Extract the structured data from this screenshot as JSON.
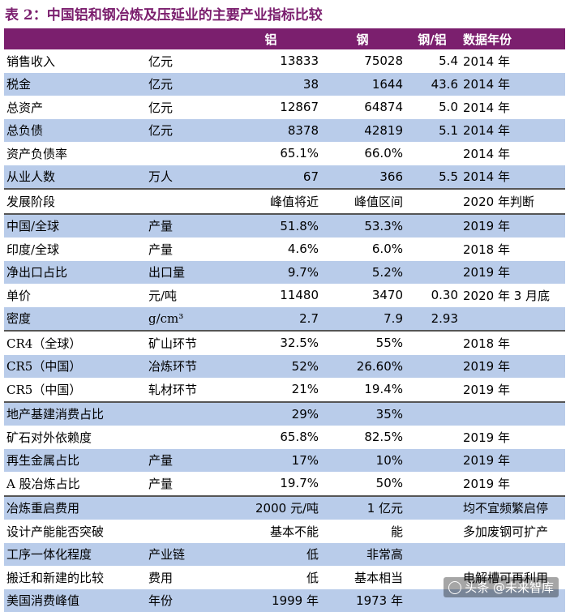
{
  "title": "表 2：中国铝和钢冶炼及压延业的主要产业指标比较",
  "header": [
    "",
    "",
    "铝",
    "钢",
    "钢/铝",
    "数据年份"
  ],
  "rows": [
    {
      "c": [
        "销售收入",
        "亿元",
        "13833",
        "75028",
        "5.4",
        "2014 年"
      ],
      "blue": false
    },
    {
      "c": [
        "税金",
        "亿元",
        "38",
        "1644",
        "43.6",
        "2014 年"
      ],
      "blue": true
    },
    {
      "c": [
        "总资产",
        "亿元",
        "12867",
        "64874",
        "5.0",
        "2014 年"
      ],
      "blue": false
    },
    {
      "c": [
        "总负债",
        "亿元",
        "8378",
        "42819",
        "5.1",
        "2014 年"
      ],
      "blue": true
    },
    {
      "c": [
        "资产负债率",
        "",
        "65.1%",
        "66.0%",
        "",
        "2014 年"
      ],
      "blue": false
    },
    {
      "c": [
        "从业人数",
        "万人",
        "67",
        "366",
        "5.5",
        "2014 年"
      ],
      "blue": true
    },
    {
      "c": [
        "发展阶段",
        "",
        "峰值将近",
        "峰值区间",
        "",
        "2020 年判断"
      ],
      "blue": false,
      "sep": true
    },
    {
      "c": [
        "中国/全球",
        "产量",
        "51.8%",
        "53.3%",
        "",
        "2019 年"
      ],
      "blue": true,
      "sep": true
    },
    {
      "c": [
        "印度/全球",
        "产量",
        "4.6%",
        "6.0%",
        "",
        "2018 年"
      ],
      "blue": false
    },
    {
      "c": [
        "净出口占比",
        "出口量",
        "9.7%",
        "5.2%",
        "",
        "2019 年"
      ],
      "blue": true
    },
    {
      "c": [
        "单价",
        "元/吨",
        "11480",
        "3470",
        "0.30",
        "2020 年 3 月底"
      ],
      "blue": false
    },
    {
      "c": [
        "密度",
        "g/cm³",
        "2.7",
        "7.9",
        "2.93",
        ""
      ],
      "blue": true
    },
    {
      "c": [
        "CR4（全球）",
        "矿山环节",
        "32.5%",
        "55%",
        "",
        "2018 年"
      ],
      "blue": false,
      "sep": true
    },
    {
      "c": [
        "CR5（中国）",
        "冶炼环节",
        "52%",
        "26.60%",
        "",
        "2019 年"
      ],
      "blue": true
    },
    {
      "c": [
        "CR5（中国）",
        "轧材环节",
        "21%",
        "19.4%",
        "",
        "2019 年"
      ],
      "blue": false
    },
    {
      "c": [
        "地产基建消费占比",
        "",
        "29%",
        "35%",
        "",
        ""
      ],
      "blue": true,
      "sep": true
    },
    {
      "c": [
        "矿石对外依赖度",
        "",
        "65.8%",
        "82.5%",
        "",
        "2019 年"
      ],
      "blue": false
    },
    {
      "c": [
        "再生金属占比",
        "产量",
        "17%",
        "10%",
        "",
        "2019 年"
      ],
      "blue": true
    },
    {
      "c": [
        "A 股冶炼占比",
        "产量",
        "19.7%",
        "50%",
        "",
        "2019 年"
      ],
      "blue": false
    },
    {
      "c": [
        "冶炼重启费用",
        "",
        "2000 元/吨",
        "1 亿元",
        "",
        "均不宜频繁启停"
      ],
      "blue": true,
      "sep": true
    },
    {
      "c": [
        "设计产能能否突破",
        "",
        "基本不能",
        "能",
        "",
        "多加废钢可扩产"
      ],
      "blue": false
    },
    {
      "c": [
        "工序一体化程度",
        "产业链",
        "低",
        "非常高",
        "",
        ""
      ],
      "blue": true
    },
    {
      "c": [
        "搬迁和新建的比较",
        "费用",
        "低",
        "基本相当",
        "",
        "电解槽可再利用"
      ],
      "blue": false
    },
    {
      "c": [
        "美国消费峰值",
        "年份",
        "1999 年",
        "1973 年",
        "",
        ""
      ],
      "blue": true
    }
  ],
  "watermark": "头条 @未来智库"
}
